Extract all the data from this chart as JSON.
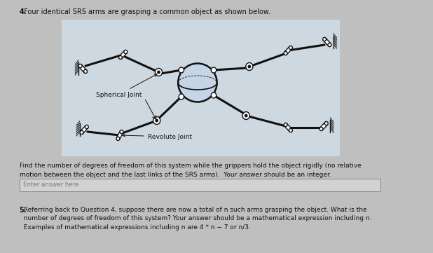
{
  "bg_color": "#c0bfbf",
  "panel_color": "#cdd8e0",
  "title_num": "4.",
  "title_text": "  Four identical SRS arms are grasping a common object as shown below.",
  "label_spherical": "Spherical Joint",
  "label_revolute": "Revolute Joint",
  "q4_body": "Find the number of degrees of freedom of this system while the grippers hold the object rigidly (no relative\nmotion between the object and the last links of the SRS arms).  Your answer should be an integer.",
  "answer_placeholder": "Enter answer here",
  "q5_num": "5.",
  "q5_text": "  Referring back to Question 4, suppose there are now a total of n such arms grasping the object. What is the\n  number of degrees of freedom of this system? Your answer should be a mathematical expression including n.\n  Examples of mathematical expressions including n are 4 * n − 7 or n/3.",
  "text_color": "#111111",
  "box_facecolor": "#d8d8d8",
  "box_edgecolor": "#999999",
  "diagram_color": "#111111",
  "object_fill": "#c5d5e5",
  "object_edge": "#111111"
}
